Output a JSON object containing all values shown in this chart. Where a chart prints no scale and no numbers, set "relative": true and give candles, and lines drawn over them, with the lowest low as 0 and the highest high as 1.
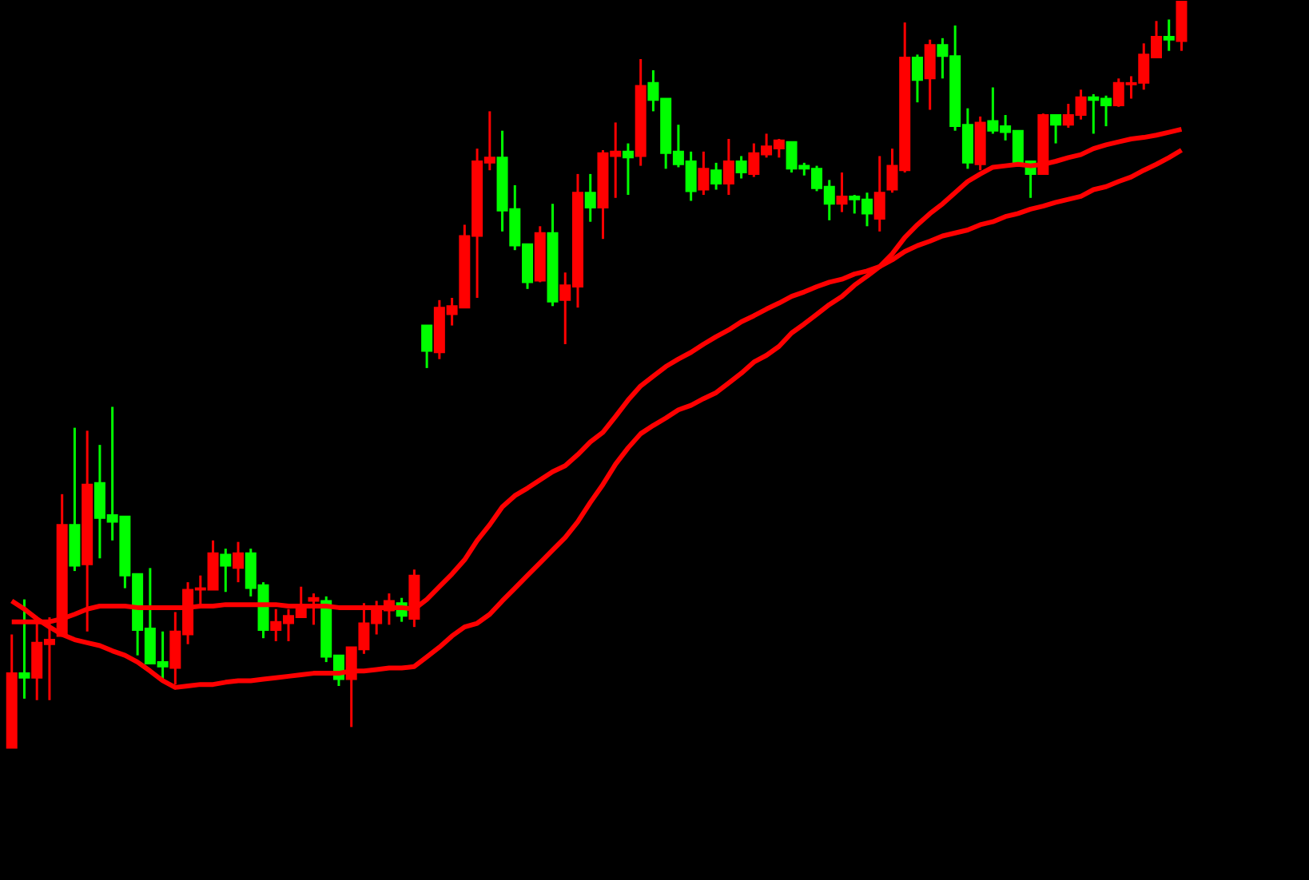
{
  "chart_data": {
    "type": "candlestick",
    "relative": true,
    "categories": [
      null,
      null,
      null,
      null,
      null,
      null,
      null,
      null,
      null,
      null,
      null,
      null,
      null,
      null,
      null,
      null,
      null,
      null,
      null,
      null,
      null,
      null,
      null,
      null,
      null,
      null,
      null,
      null,
      null,
      null,
      null,
      null,
      null,
      null,
      null,
      null,
      null,
      null,
      null,
      null,
      null,
      null,
      null,
      null,
      null,
      null,
      null,
      null,
      null,
      null,
      null,
      null,
      null,
      null,
      null,
      null,
      null,
      null,
      null,
      null,
      null,
      null,
      null,
      null,
      null,
      null,
      null,
      null,
      null,
      null,
      null,
      null,
      null,
      null,
      null,
      null,
      null,
      null,
      null,
      null,
      null,
      null,
      null,
      null,
      null,
      null,
      null,
      null,
      null,
      null,
      null,
      null,
      null,
      null
    ],
    "ohlc": [
      [
        0,
        0.152,
        0,
        0.1
      ],
      [
        0.1,
        0.199,
        0.066,
        0.094
      ],
      [
        0.094,
        0.173,
        0.064,
        0.141
      ],
      [
        0.139,
        0.175,
        0.064,
        0.145
      ],
      [
        0.15,
        0.34,
        0.15,
        0.299
      ],
      [
        0.299,
        0.429,
        0.237,
        0.244
      ],
      [
        0.246,
        0.425,
        0.156,
        0.353
      ],
      [
        0.355,
        0.406,
        0.254,
        0.308
      ],
      [
        0.312,
        0.457,
        0.278,
        0.303
      ],
      [
        0.31,
        0.31,
        0.214,
        0.231
      ],
      [
        0.233,
        0.233,
        0.124,
        0.158
      ],
      [
        0.16,
        0.241,
        0.113,
        0.113
      ],
      [
        0.115,
        0.156,
        0.092,
        0.109
      ],
      [
        0.107,
        0.182,
        0.085,
        0.156
      ],
      [
        0.152,
        0.222,
        0.139,
        0.212
      ],
      [
        0.212,
        0.231,
        0.192,
        0.214
      ],
      [
        0.212,
        0.278,
        0.212,
        0.261
      ],
      [
        0.259,
        0.267,
        0.209,
        0.244
      ],
      [
        0.241,
        0.276,
        0.222,
        0.261
      ],
      [
        0.261,
        0.267,
        0.203,
        0.214
      ],
      [
        0.218,
        0.222,
        0.147,
        0.158
      ],
      [
        0.158,
        0.186,
        0.143,
        0.169
      ],
      [
        0.167,
        0.186,
        0.143,
        0.177
      ],
      [
        0.175,
        0.216,
        0.175,
        0.19
      ],
      [
        0.197,
        0.207,
        0.165,
        0.201
      ],
      [
        0.197,
        0.203,
        0.115,
        0.122
      ],
      [
        0.124,
        0.124,
        0.083,
        0.092
      ],
      [
        0.092,
        0.135,
        0.028,
        0.135
      ],
      [
        0.132,
        0.194,
        0.126,
        0.167
      ],
      [
        0.167,
        0.197,
        0.152,
        0.186
      ],
      [
        0.184,
        0.207,
        0.165,
        0.197
      ],
      [
        0.194,
        0.201,
        0.169,
        0.177
      ],
      [
        0.173,
        0.239,
        0.162,
        0.231
      ],
      [
        0.566,
        0.566,
        0.509,
        0.532
      ],
      [
        0.53,
        0.6,
        0.521,
        0.59
      ],
      [
        0.581,
        0.603,
        0.566,
        0.592
      ],
      [
        0.59,
        0.701,
        0.59,
        0.686
      ],
      [
        0.686,
        0.803,
        0.603,
        0.786
      ],
      [
        0.784,
        0.853,
        0.774,
        0.791
      ],
      [
        0.791,
        0.827,
        0.692,
        0.72
      ],
      [
        0.722,
        0.754,
        0.667,
        0.673
      ],
      [
        0.675,
        0.675,
        0.615,
        0.624
      ],
      [
        0.626,
        0.699,
        0.624,
        0.69
      ],
      [
        0.69,
        0.729,
        0.592,
        0.598
      ],
      [
        0.6,
        0.637,
        0.541,
        0.62
      ],
      [
        0.618,
        0.769,
        0.59,
        0.744
      ],
      [
        0.744,
        0.769,
        0.705,
        0.724
      ],
      [
        0.724,
        0.801,
        0.682,
        0.797
      ],
      [
        0.793,
        0.838,
        0.737,
        0.799
      ],
      [
        0.799,
        0.81,
        0.741,
        0.791
      ],
      [
        0.793,
        0.923,
        0.78,
        0.887
      ],
      [
        0.891,
        0.908,
        0.853,
        0.868
      ],
      [
        0.87,
        0.87,
        0.776,
        0.797
      ],
      [
        0.799,
        0.835,
        0.778,
        0.782
      ],
      [
        0.786,
        0.799,
        0.733,
        0.746
      ],
      [
        0.748,
        0.799,
        0.741,
        0.776
      ],
      [
        0.774,
        0.784,
        0.748,
        0.756
      ],
      [
        0.756,
        0.816,
        0.741,
        0.786
      ],
      [
        0.786,
        0.793,
        0.763,
        0.771
      ],
      [
        0.769,
        0.81,
        0.765,
        0.797
      ],
      [
        0.795,
        0.823,
        0.791,
        0.806
      ],
      [
        0.803,
        0.816,
        0.791,
        0.814
      ],
      [
        0.812,
        0.812,
        0.771,
        0.776
      ],
      [
        0.78,
        0.784,
        0.767,
        0.776
      ],
      [
        0.776,
        0.78,
        0.746,
        0.75
      ],
      [
        0.752,
        0.761,
        0.707,
        0.729
      ],
      [
        0.729,
        0.771,
        0.718,
        0.739
      ],
      [
        0.739,
        0.741,
        0.716,
        0.735
      ],
      [
        0.735,
        0.744,
        0.699,
        0.716
      ],
      [
        0.709,
        0.793,
        0.692,
        0.744
      ],
      [
        0.748,
        0.803,
        0.744,
        0.78
      ],
      [
        0.774,
        0.972,
        0.771,
        0.925
      ],
      [
        0.925,
        0.929,
        0.865,
        0.895
      ],
      [
        0.897,
        0.949,
        0.855,
        0.942
      ],
      [
        0.942,
        0.951,
        0.897,
        0.927
      ],
      [
        0.927,
        0.968,
        0.827,
        0.833
      ],
      [
        0.835,
        0.857,
        0.776,
        0.784
      ],
      [
        0.782,
        0.846,
        0.774,
        0.838
      ],
      [
        0.84,
        0.885,
        0.823,
        0.827
      ],
      [
        0.833,
        0.848,
        0.814,
        0.825
      ],
      [
        0.827,
        0.827,
        0.782,
        0.784
      ],
      [
        0.786,
        0.786,
        0.737,
        0.769
      ],
      [
        0.769,
        0.85,
        0.769,
        0.848
      ],
      [
        0.848,
        0.848,
        0.81,
        0.835
      ],
      [
        0.835,
        0.863,
        0.831,
        0.848
      ],
      [
        0.848,
        0.882,
        0.842,
        0.872
      ],
      [
        0.872,
        0.876,
        0.823,
        0.868
      ],
      [
        0.87,
        0.874,
        0.833,
        0.861
      ],
      [
        0.861,
        0.897,
        0.859,
        0.891
      ],
      [
        0.889,
        0.9,
        0.87,
        0.891
      ],
      [
        0.891,
        0.944,
        0.882,
        0.929
      ],
      [
        0.925,
        0.974,
        0.925,
        0.953
      ],
      [
        0.953,
        0.976,
        0.934,
        0.949
      ],
      [
        0.947,
        1,
        0.934,
        1
      ]
    ],
    "colors": [
      "#ff0000",
      "#00ff00",
      "#ff0000",
      "#ff0000",
      "#ff0000",
      "#00ff00",
      "#ff0000",
      "#00ff00",
      "#00ff00",
      "#00ff00",
      "#00ff00",
      "#00ff00",
      "#00ff00",
      "#ff0000",
      "#ff0000",
      "#ff0000",
      "#ff0000",
      "#00ff00",
      "#ff0000",
      "#00ff00",
      "#00ff00",
      "#ff0000",
      "#ff0000",
      "#ff0000",
      "#ff0000",
      "#00ff00",
      "#00ff00",
      "#ff0000",
      "#ff0000",
      "#ff0000",
      "#ff0000",
      "#00ff00",
      "#ff0000",
      "#00ff00",
      "#ff0000",
      "#ff0000",
      "#ff0000",
      "#ff0000",
      "#ff0000",
      "#00ff00",
      "#00ff00",
      "#00ff00",
      "#ff0000",
      "#00ff00",
      "#ff0000",
      "#ff0000",
      "#00ff00",
      "#ff0000",
      "#ff0000",
      "#00ff00",
      "#ff0000",
      "#00ff00",
      "#00ff00",
      "#00ff00",
      "#00ff00",
      "#ff0000",
      "#00ff00",
      "#ff0000",
      "#00ff00",
      "#ff0000",
      "#ff0000",
      "#ff0000",
      "#00ff00",
      "#00ff00",
      "#00ff00",
      "#00ff00",
      "#ff0000",
      "#00ff00",
      "#00ff00",
      "#ff0000",
      "#ff0000",
      "#ff0000",
      "#00ff00",
      "#ff0000",
      "#00ff00",
      "#00ff00",
      "#00ff00",
      "#ff0000",
      "#00ff00",
      "#00ff00",
      "#00ff00",
      "#00ff00",
      "#ff0000",
      "#00ff00",
      "#ff0000",
      "#ff0000",
      "#00ff00",
      "#00ff00",
      "#ff0000",
      "#ff0000",
      "#ff0000",
      "#ff0000",
      "#00ff00",
      "#ff0000"
    ],
    "series": [
      {
        "type": "line",
        "color": "#ff0000",
        "values": [
          0.169,
          0.169,
          0.169,
          0.169,
          0.173,
          0.179,
          0.186,
          0.19,
          0.19,
          0.19,
          0.188,
          0.188,
          0.188,
          0.188,
          0.188,
          0.19,
          0.19,
          0.192,
          0.192,
          0.192,
          0.192,
          0.192,
          0.19,
          0.19,
          0.19,
          0.19,
          0.188,
          0.188,
          0.188,
          0.188,
          0.188,
          0.188,
          0.186,
          0.199,
          0.216,
          0.233,
          0.252,
          0.278,
          0.299,
          0.323,
          0.338,
          0.348,
          0.359,
          0.37,
          0.378,
          0.393,
          0.41,
          0.423,
          0.444,
          0.466,
          0.485,
          0.498,
          0.511,
          0.521,
          0.53,
          0.541,
          0.551,
          0.56,
          0.571,
          0.579,
          0.588,
          0.596,
          0.605,
          0.611,
          0.618,
          0.624,
          0.628,
          0.635,
          0.639,
          0.645,
          0.654,
          0.665,
          0.673,
          0.679,
          0.686,
          0.69,
          0.694,
          0.701,
          0.705,
          0.712,
          0.716,
          0.722,
          0.726,
          0.731,
          0.735,
          0.739,
          0.748,
          0.752,
          0.759,
          0.765,
          0.774,
          0.782,
          0.791,
          0.801
        ]
      },
      {
        "type": "line",
        "color": "#ff0000",
        "values": [
          0.197,
          0.186,
          0.173,
          0.162,
          0.152,
          0.145,
          0.141,
          0.137,
          0.13,
          0.124,
          0.115,
          0.103,
          0.09,
          0.081,
          0.083,
          0.085,
          0.085,
          0.088,
          0.09,
          0.09,
          0.092,
          0.094,
          0.096,
          0.098,
          0.1,
          0.1,
          0.1,
          0.103,
          0.103,
          0.105,
          0.107,
          0.107,
          0.109,
          0.122,
          0.135,
          0.15,
          0.162,
          0.167,
          0.179,
          0.197,
          0.214,
          0.231,
          0.248,
          0.265,
          0.282,
          0.303,
          0.329,
          0.353,
          0.38,
          0.402,
          0.421,
          0.432,
          0.442,
          0.453,
          0.459,
          0.468,
          0.476,
          0.489,
          0.502,
          0.517,
          0.526,
          0.538,
          0.556,
          0.568,
          0.581,
          0.594,
          0.605,
          0.62,
          0.632,
          0.645,
          0.662,
          0.684,
          0.701,
          0.716,
          0.729,
          0.744,
          0.759,
          0.769,
          0.778,
          0.78,
          0.782,
          0.78,
          0.782,
          0.786,
          0.791,
          0.795,
          0.803,
          0.808,
          0.812,
          0.816,
          0.818,
          0.821,
          0.825,
          0.829
        ]
      }
    ],
    "line_style": "solid"
  }
}
